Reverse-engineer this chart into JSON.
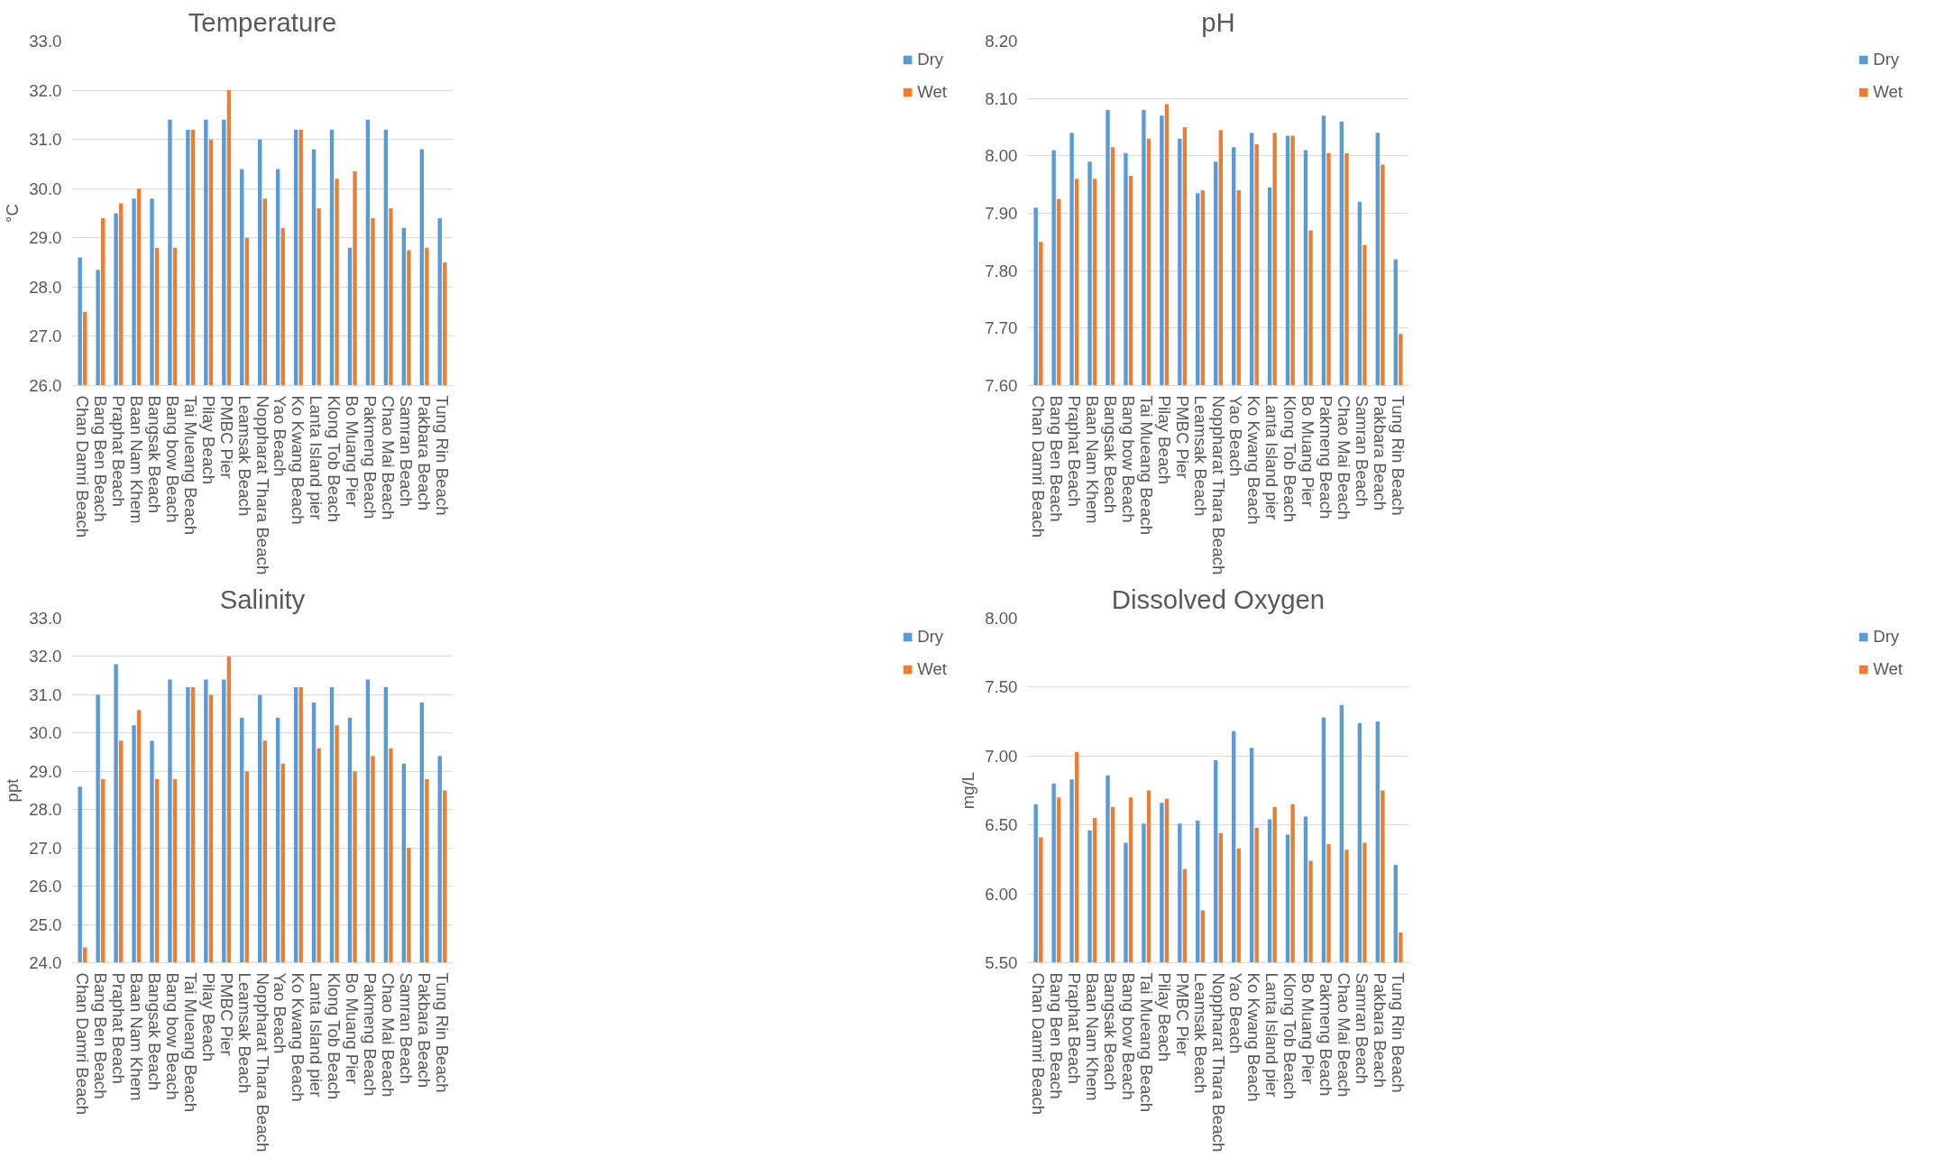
{
  "chart_data": [
    {
      "type": "bar",
      "title": "Temperature",
      "ylabel": "°C",
      "legend": "right",
      "grid": "y",
      "categories": [
        "Chan Damri Beach",
        "Bang Ben Beach",
        "Praphat Beach",
        "Baan Nam Khem",
        "Bangsak Beach",
        "Bang bow Beach",
        "Tai Mueang Beach",
        "Pilay Beach",
        "PMBC Pier",
        "Leamsak Beach",
        "Noppharat Thara Beach",
        "Yao Beach",
        "Ko Kwang Beach",
        "Lanta Island pier",
        "Klong Tob Beach",
        "Bo Muang Pier",
        "Pakmeng Beach",
        "Chao Mai Beach",
        "Samran Beach",
        "Pakbara Beach",
        "Tung Rin Beach"
      ],
      "ylim": [
        26,
        33
      ],
      "yticks": [
        {
          "value": 26,
          "label": "26.0"
        },
        {
          "value": 27,
          "label": "27.0"
        },
        {
          "value": 28,
          "label": "28.0"
        },
        {
          "value": 29,
          "label": "29.0"
        },
        {
          "value": 30,
          "label": "30.0"
        },
        {
          "value": 31,
          "label": "31.0"
        },
        {
          "value": 32,
          "label": "32.0"
        },
        {
          "value": 33,
          "label": "33.0"
        }
      ],
      "series": [
        {
          "name": "Dry",
          "color": "#5b9bd5",
          "values": [
            28.6,
            28.35,
            29.5,
            29.8,
            29.8,
            31.4,
            31.2,
            31.4,
            31.4,
            30.4,
            31.0,
            30.4,
            31.2,
            30.8,
            31.2,
            28.8,
            31.4,
            31.2,
            29.2,
            30.8,
            29.4
          ]
        },
        {
          "name": "Wet",
          "color": "#ed7d31",
          "values": [
            27.5,
            29.4,
            29.7,
            30.0,
            28.8,
            28.8,
            31.2,
            31.0,
            32.0,
            29.0,
            29.8,
            29.2,
            31.2,
            29.6,
            30.2,
            30.35,
            29.4,
            29.6,
            28.75,
            28.8,
            28.5
          ]
        }
      ]
    },
    {
      "type": "bar",
      "title": "pH",
      "legend": "right",
      "grid": "y",
      "categories": [
        "Chan Damri Beach",
        "Bang Ben Beach",
        "Praphat Beach",
        "Baan Nam Khem",
        "Bangsak Beach",
        "Bang bow Beach",
        "Tai Mueang Beach",
        "Pilay Beach",
        "PMBC Pier",
        "Leamsak Beach",
        "Noppharat Thara Beach",
        "Yao Beach",
        "Ko Kwang Beach",
        "Lanta Island pier",
        "Klong Tob Beach",
        "Bo Muang Pier",
        "Pakmeng Beach",
        "Chao Mai Beach",
        "Samran Beach",
        "Pakbara Beach",
        "Tung Rin Beach"
      ],
      "ylim": [
        7.6,
        8.2
      ],
      "yticks": [
        {
          "value": 7.6,
          "label": "7.60"
        },
        {
          "value": 7.7,
          "label": "7.70"
        },
        {
          "value": 7.8,
          "label": "7.80"
        },
        {
          "value": 7.9,
          "label": "7.90"
        },
        {
          "value": 8.0,
          "label": "8.00"
        },
        {
          "value": 8.1,
          "label": "8.10"
        },
        {
          "value": 8.2,
          "label": "8.20"
        }
      ],
      "series": [
        {
          "name": "Dry",
          "color": "#5b9bd5",
          "values": [
            7.91,
            8.01,
            8.04,
            7.99,
            8.08,
            8.005,
            8.08,
            8.07,
            8.03,
            7.935,
            7.99,
            8.015,
            8.04,
            7.945,
            8.035,
            8.01,
            8.07,
            8.06,
            7.92,
            8.04,
            7.82
          ]
        },
        {
          "name": "Wet",
          "color": "#ed7d31",
          "values": [
            7.85,
            7.925,
            7.96,
            7.96,
            8.015,
            7.965,
            8.03,
            8.09,
            8.05,
            7.94,
            8.045,
            7.94,
            8.02,
            8.04,
            8.035,
            7.87,
            8.005,
            8.005,
            7.845,
            7.985,
            7.69
          ]
        }
      ]
    },
    {
      "type": "bar",
      "title": "Salinity",
      "ylabel": "ppt",
      "legend": "right",
      "grid": "y",
      "categories": [
        "Chan Damri Beach",
        "Bang Ben Beach",
        "Praphat Beach",
        "Baan Nam Khem",
        "Bangsak Beach",
        "Bang bow Beach",
        "Tai Mueang Beach",
        "Pilay Beach",
        "PMBC Pier",
        "Leamsak Beach",
        "Noppharat Thara Beach",
        "Yao Beach",
        "Ko Kwang Beach",
        "Lanta Island pier",
        "Klong Tob Beach",
        "Bo Muang Pier",
        "Pakmeng Beach",
        "Chao Mai Beach",
        "Samran Beach",
        "Pakbara Beach",
        "Tung Rin Beach"
      ],
      "ylim": [
        24,
        33
      ],
      "yticks": [
        {
          "value": 24,
          "label": "24.0"
        },
        {
          "value": 25,
          "label": "25.0"
        },
        {
          "value": 26,
          "label": "26.0"
        },
        {
          "value": 27,
          "label": "27.0"
        },
        {
          "value": 28,
          "label": "28.0"
        },
        {
          "value": 29,
          "label": "29.0"
        },
        {
          "value": 30,
          "label": "30.0"
        },
        {
          "value": 31,
          "label": "31.0"
        },
        {
          "value": 32,
          "label": "32.0"
        },
        {
          "value": 33,
          "label": "33.0"
        }
      ],
      "series": [
        {
          "name": "Dry",
          "color": "#5b9bd5",
          "values": [
            28.6,
            31.0,
            31.8,
            30.2,
            29.8,
            31.4,
            31.2,
            31.4,
            31.4,
            30.4,
            31.0,
            30.4,
            31.2,
            30.8,
            31.2,
            30.4,
            31.4,
            31.2,
            29.2,
            30.8,
            29.4
          ]
        },
        {
          "name": "Wet",
          "color": "#ed7d31",
          "values": [
            24.4,
            28.8,
            29.8,
            30.6,
            28.8,
            28.8,
            31.2,
            31.0,
            32.0,
            29.0,
            29.8,
            29.2,
            31.2,
            29.6,
            30.2,
            29.0,
            29.4,
            29.6,
            27.0,
            28.8,
            28.5
          ]
        }
      ]
    },
    {
      "type": "bar",
      "title": "Dissolved Oxygen",
      "ylabel": "mg/L",
      "legend": "right",
      "grid": "y",
      "categories": [
        "Chan Damri Beach",
        "Bang Ben Beach",
        "Praphat Beach",
        "Baan Nam Khem",
        "Bangsak Beach",
        "Bang bow Beach",
        "Tai Mueang Beach",
        "Pilay Beach",
        "PMBC Pier",
        "Leamsak Beach",
        "Noppharat Thara Beach",
        "Yao Beach",
        "Ko Kwang Beach",
        "Lanta Island pier",
        "Klong Tob Beach",
        "Bo Muang Pier",
        "Pakmeng Beach",
        "Chao Mai Beach",
        "Samran Beach",
        "Pakbara Beach",
        "Tung Rin Beach"
      ],
      "ylim": [
        5.5,
        8.0
      ],
      "yticks": [
        {
          "value": 5.5,
          "label": "5.50"
        },
        {
          "value": 6.0,
          "label": "6.00"
        },
        {
          "value": 6.5,
          "label": "6.50"
        },
        {
          "value": 7.0,
          "label": "7.00"
        },
        {
          "value": 7.5,
          "label": "7.50"
        },
        {
          "value": 8.0,
          "label": "8.00"
        }
      ],
      "series": [
        {
          "name": "Dry",
          "color": "#5b9bd5",
          "values": [
            6.65,
            6.8,
            6.83,
            6.46,
            6.86,
            6.37,
            6.51,
            6.66,
            6.51,
            6.53,
            6.97,
            7.18,
            7.06,
            6.54,
            6.43,
            6.56,
            7.28,
            7.37,
            7.24,
            7.25,
            6.21
          ]
        },
        {
          "name": "Wet",
          "color": "#ed7d31",
          "values": [
            6.41,
            6.7,
            7.03,
            6.55,
            6.63,
            6.7,
            6.75,
            6.69,
            6.18,
            5.88,
            6.44,
            6.33,
            6.48,
            6.63,
            6.65,
            6.24,
            6.36,
            6.32,
            6.37,
            6.75,
            5.72
          ]
        }
      ]
    }
  ]
}
